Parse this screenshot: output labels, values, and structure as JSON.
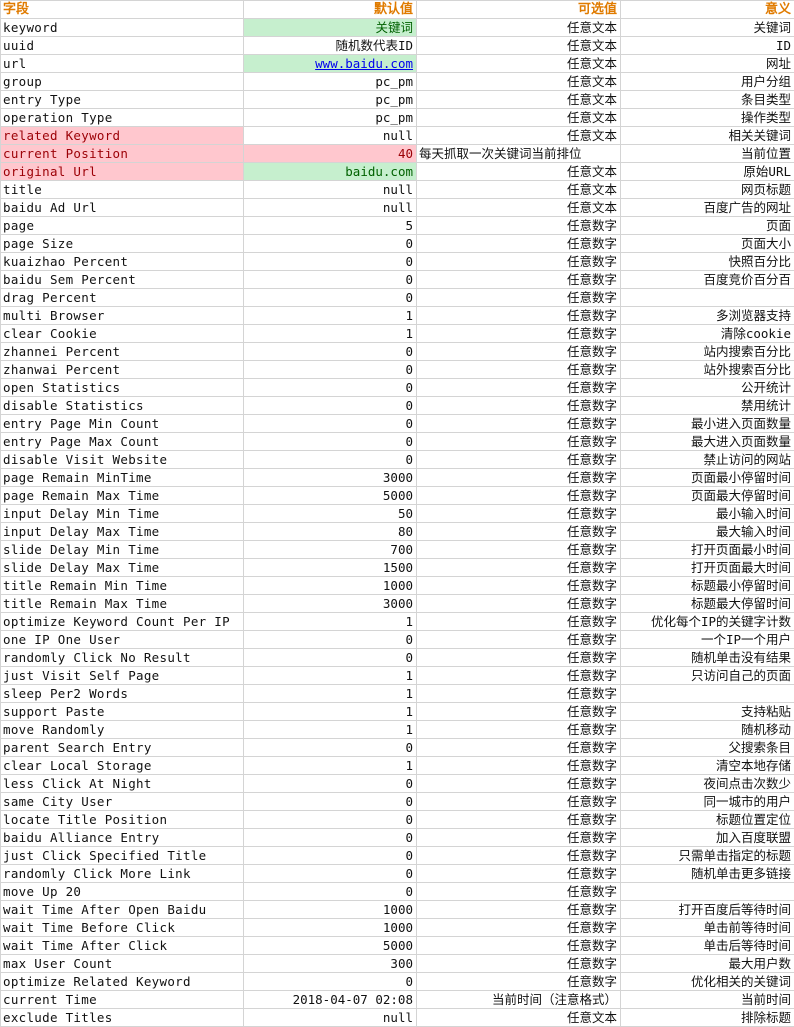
{
  "headers": {
    "field": "字段",
    "default": "默认值",
    "options": "可选值",
    "meaning": "意义"
  },
  "rows": [
    {
      "field": "keyword",
      "default": "关键词",
      "options": "任意文本",
      "meaning": "关键词",
      "default_style": "green"
    },
    {
      "field": "uuid",
      "default": "随机数代表ID",
      "options": "任意文本",
      "meaning": "ID"
    },
    {
      "field": "url",
      "default": "www.baidu.com",
      "options": "任意文本",
      "meaning": "网址",
      "default_style": "green-link"
    },
    {
      "field": "group",
      "default": "pc_pm",
      "options": "任意文本",
      "meaning": "用户分组"
    },
    {
      "field": "entry Type",
      "default": "pc_pm",
      "options": "任意文本",
      "meaning": "条目类型"
    },
    {
      "field": "operation Type",
      "default": "pc_pm",
      "options": "任意文本",
      "meaning": "操作类型"
    },
    {
      "field": "related Keyword",
      "default": "null",
      "options": "任意文本",
      "meaning": "相关关键词",
      "field_style": "red"
    },
    {
      "field": "current Position",
      "default": "40",
      "options": "每天抓取一次关键词当前排位",
      "meaning": "当前位置",
      "field_style": "red",
      "default_style": "red",
      "options_align": "left"
    },
    {
      "field": "original Url",
      "default": "baidu.com",
      "options": "任意文本",
      "meaning": "原始URL",
      "field_style": "red",
      "default_style": "green"
    },
    {
      "field": "title",
      "default": "null",
      "options": "任意文本",
      "meaning": "网页标题"
    },
    {
      "field": "baidu Ad Url",
      "default": "null",
      "options": "任意文本",
      "meaning": "百度广告的网址"
    },
    {
      "field": "page",
      "default": "5",
      "options": "任意数字",
      "meaning": "页面"
    },
    {
      "field": "page Size",
      "default": "0",
      "options": "任意数字",
      "meaning": "页面大小"
    },
    {
      "field": "kuaizhao Percent",
      "default": "0",
      "options": "任意数字",
      "meaning": "快照百分比"
    },
    {
      "field": "baidu Sem Percent",
      "default": "0",
      "options": "任意数字",
      "meaning": "百度竞价百分百"
    },
    {
      "field": "drag Percent",
      "default": "0",
      "options": "任意数字",
      "meaning": ""
    },
    {
      "field": "multi Browser",
      "default": "1",
      "options": "任意数字",
      "meaning": "多浏览器支持"
    },
    {
      "field": "clear Cookie",
      "default": "1",
      "options": "任意数字",
      "meaning": "清除cookie"
    },
    {
      "field": "zhannei Percent",
      "default": "0",
      "options": "任意数字",
      "meaning": "站内搜索百分比"
    },
    {
      "field": "zhanwai Percent",
      "default": "0",
      "options": "任意数字",
      "meaning": "站外搜索百分比"
    },
    {
      "field": "open Statistics",
      "default": "0",
      "options": "任意数字",
      "meaning": "公开统计"
    },
    {
      "field": "disable Statistics",
      "default": "0",
      "options": "任意数字",
      "meaning": "禁用统计"
    },
    {
      "field": "entry Page Min Count",
      "default": "0",
      "options": "任意数字",
      "meaning": "最小进入页面数量"
    },
    {
      "field": "entry Page Max Count",
      "default": "0",
      "options": "任意数字",
      "meaning": "最大进入页面数量"
    },
    {
      "field": "disable Visit Website",
      "default": "0",
      "options": "任意数字",
      "meaning": "禁止访问的网站"
    },
    {
      "field": "page Remain MinTime",
      "default": "3000",
      "options": "任意数字",
      "meaning": "页面最小停留时间"
    },
    {
      "field": "page Remain Max Time",
      "default": "5000",
      "options": "任意数字",
      "meaning": "页面最大停留时间"
    },
    {
      "field": "input Delay Min Time",
      "default": "50",
      "options": "任意数字",
      "meaning": "最小输入时间"
    },
    {
      "field": "input Delay Max Time",
      "default": "80",
      "options": "任意数字",
      "meaning": "最大输入时间"
    },
    {
      "field": "slide Delay Min Time",
      "default": "700",
      "options": "任意数字",
      "meaning": "打开页面最小时间"
    },
    {
      "field": "slide Delay Max Time",
      "default": "1500",
      "options": "任意数字",
      "meaning": "打开页面最大时间"
    },
    {
      "field": "title Remain Min Time",
      "default": "1000",
      "options": "任意数字",
      "meaning": "标题最小停留时间"
    },
    {
      "field": "title Remain Max Time",
      "default": "3000",
      "options": "任意数字",
      "meaning": "标题最大停留时间"
    },
    {
      "field": "optimize Keyword Count Per IP",
      "default": "1",
      "options": "任意数字",
      "meaning": "优化每个IP的关键字计数"
    },
    {
      "field": "one IP One User",
      "default": "0",
      "options": "任意数字",
      "meaning": "一个IP一个用户"
    },
    {
      "field": "randomly Click No Result",
      "default": "0",
      "options": "任意数字",
      "meaning": "随机单击没有结果"
    },
    {
      "field": "just Visit Self Page",
      "default": "1",
      "options": "任意数字",
      "meaning": "只访问自己的页面"
    },
    {
      "field": "sleep Per2 Words",
      "default": "1",
      "options": "任意数字",
      "meaning": ""
    },
    {
      "field": "support Paste",
      "default": "1",
      "options": "任意数字",
      "meaning": "支持粘贴"
    },
    {
      "field": "move Randomly",
      "default": "1",
      "options": "任意数字",
      "meaning": "随机移动"
    },
    {
      "field": "parent Search Entry",
      "default": "0",
      "options": "任意数字",
      "meaning": "父搜索条目"
    },
    {
      "field": "clear Local Storage",
      "default": "1",
      "options": "任意数字",
      "meaning": "清空本地存储"
    },
    {
      "field": "less Click At Night",
      "default": "0",
      "options": "任意数字",
      "meaning": "夜间点击次数少"
    },
    {
      "field": "same City User",
      "default": "0",
      "options": "任意数字",
      "meaning": "同一城市的用户"
    },
    {
      "field": "locate Title Position",
      "default": "0",
      "options": "任意数字",
      "meaning": "标题位置定位"
    },
    {
      "field": "baidu Alliance Entry",
      "default": "0",
      "options": "任意数字",
      "meaning": "加入百度联盟"
    },
    {
      "field": "just Click Specified Title",
      "default": "0",
      "options": "任意数字",
      "meaning": "只需单击指定的标题"
    },
    {
      "field": "randomly Click More Link",
      "default": "0",
      "options": "任意数字",
      "meaning": "随机单击更多链接"
    },
    {
      "field": "move Up 20",
      "default": "0",
      "options": "任意数字",
      "meaning": ""
    },
    {
      "field": "wait Time After Open Baidu",
      "default": "1000",
      "options": "任意数字",
      "meaning": "打开百度后等待时间"
    },
    {
      "field": "wait Time Before Click",
      "default": "1000",
      "options": "任意数字",
      "meaning": "单击前等待时间"
    },
    {
      "field": "wait Time After Click",
      "default": "5000",
      "options": "任意数字",
      "meaning": "单击后等待时间"
    },
    {
      "field": "max User Count",
      "default": "300",
      "options": "任意数字",
      "meaning": "最大用户数"
    },
    {
      "field": "optimize Related Keyword",
      "default": "0",
      "options": "任意数字",
      "meaning": "优化相关的关键词"
    },
    {
      "field": "current Time",
      "default": "2018-04-07 02:08",
      "options": "当前时间（注意格式）",
      "meaning": "当前时间"
    },
    {
      "field": "exclude Titles",
      "default": "null",
      "options": "任意文本",
      "meaning": "排除标题"
    }
  ]
}
